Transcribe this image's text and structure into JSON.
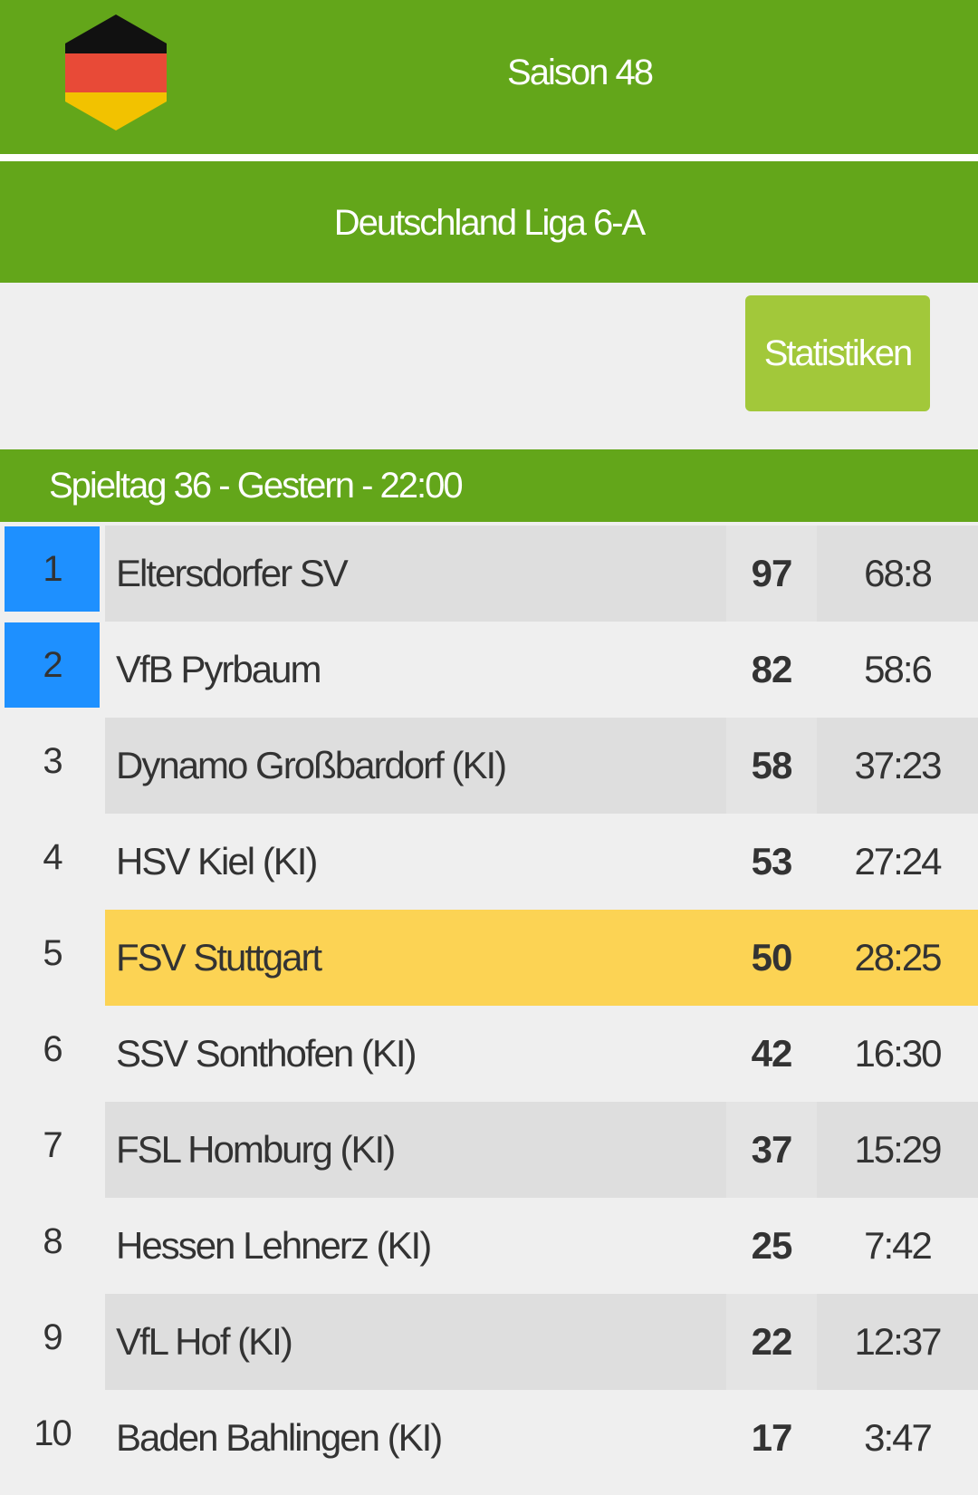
{
  "header": {
    "season_title": "Saison 48",
    "league_title": "Deutschland Liga 6-A",
    "flag_icon": "germany-flag-hexagon-icon",
    "colors": {
      "header_green": "#63a61a",
      "button_green": "#a2c83a",
      "promotion_blue": "#1e90ff",
      "highlight_yellow": "#fcd354"
    }
  },
  "stats_button": {
    "label": "Statistiken"
  },
  "matchday": {
    "label": "Spieltag 36 - Gestern - 22:00"
  },
  "standings": [
    {
      "rank": "1",
      "team": "Eltersdorfer SV",
      "points": "97",
      "goals": "68:8",
      "promotion": true,
      "highlight": false
    },
    {
      "rank": "2",
      "team": "VfB Pyrbaum",
      "points": "82",
      "goals": "58:6",
      "promotion": true,
      "highlight": false
    },
    {
      "rank": "3",
      "team": "Dynamo Großbardorf (KI)",
      "points": "58",
      "goals": "37:23",
      "promotion": false,
      "highlight": false
    },
    {
      "rank": "4",
      "team": "HSV Kiel (KI)",
      "points": "53",
      "goals": "27:24",
      "promotion": false,
      "highlight": false
    },
    {
      "rank": "5",
      "team": "FSV Stuttgart",
      "points": "50",
      "goals": "28:25",
      "promotion": false,
      "highlight": true
    },
    {
      "rank": "6",
      "team": "SSV Sonthofen (KI)",
      "points": "42",
      "goals": "16:30",
      "promotion": false,
      "highlight": false
    },
    {
      "rank": "7",
      "team": "FSL Homburg (KI)",
      "points": "37",
      "goals": "15:29",
      "promotion": false,
      "highlight": false
    },
    {
      "rank": "8",
      "team": "Hessen Lehnerz (KI)",
      "points": "25",
      "goals": "7:42",
      "promotion": false,
      "highlight": false
    },
    {
      "rank": "9",
      "team": "VfL Hof (KI)",
      "points": "22",
      "goals": "12:37",
      "promotion": false,
      "highlight": false
    },
    {
      "rank": "10",
      "team": "Baden Bahlingen (KI)",
      "points": "17",
      "goals": "3:47",
      "promotion": false,
      "highlight": false
    }
  ]
}
